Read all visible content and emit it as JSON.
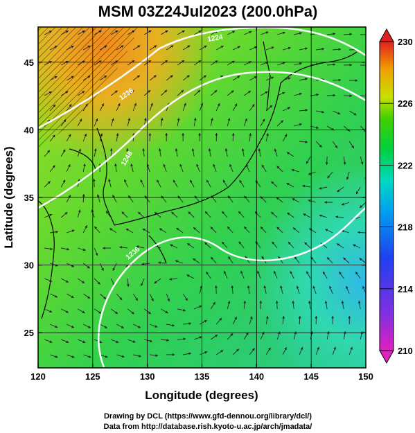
{
  "title": "MSM 03Z24Jul2023 (200.0hPa)",
  "xlabel": "Longitude (degrees)",
  "ylabel": "Latitude  (degrees)",
  "footer": {
    "line1": "Drawing by DCL (https://www.gfd-dennou.org/library/dcl/)",
    "line2": "Data from http://database.rish.kyoto-u.ac.jp/arch/jmadata/"
  },
  "chart_data": {
    "type": "heatmap",
    "xlim": [
      120,
      150
    ],
    "ylim": [
      22.4,
      47.6
    ],
    "x_ticks": [
      {
        "value": 120,
        "label": "120"
      },
      {
        "value": 125,
        "label": "125"
      },
      {
        "value": 130,
        "label": "130"
      },
      {
        "value": 135,
        "label": "135"
      },
      {
        "value": 140,
        "label": "140"
      },
      {
        "value": 145,
        "label": "145"
      },
      {
        "value": 150,
        "label": "150"
      }
    ],
    "y_ticks": [
      {
        "value": 25,
        "label": "25"
      },
      {
        "value": 30,
        "label": "30"
      },
      {
        "value": 35,
        "label": "35"
      },
      {
        "value": 40,
        "label": "40"
      },
      {
        "value": 45,
        "label": "45"
      }
    ],
    "grid": true,
    "colorbar": {
      "min": 210,
      "max": 230,
      "labels": [
        "230",
        "226",
        "222",
        "218",
        "214",
        "210"
      ],
      "position": "right",
      "colors": [
        "#e020c0",
        "#8030e0",
        "#2040f0",
        "#00a0f0",
        "#00d8c0",
        "#00d040",
        "#40d000",
        "#c8e000",
        "#f0a000",
        "#e02020"
      ]
    },
    "contour_labels": [
      "1236",
      "1248",
      "1236",
      "1224"
    ],
    "field_samples": [
      {
        "lon": 122,
        "lat": 46,
        "value": 226
      },
      {
        "lon": 127,
        "lat": 46,
        "value": 227
      },
      {
        "lon": 140,
        "lat": 45,
        "value": 223
      },
      {
        "lon": 143,
        "lat": 39,
        "value": 222
      },
      {
        "lon": 133,
        "lat": 30,
        "value": 223
      },
      {
        "lon": 148,
        "lat": 29,
        "value": 218
      },
      {
        "lon": 125,
        "lat": 25,
        "value": 223
      }
    ]
  }
}
